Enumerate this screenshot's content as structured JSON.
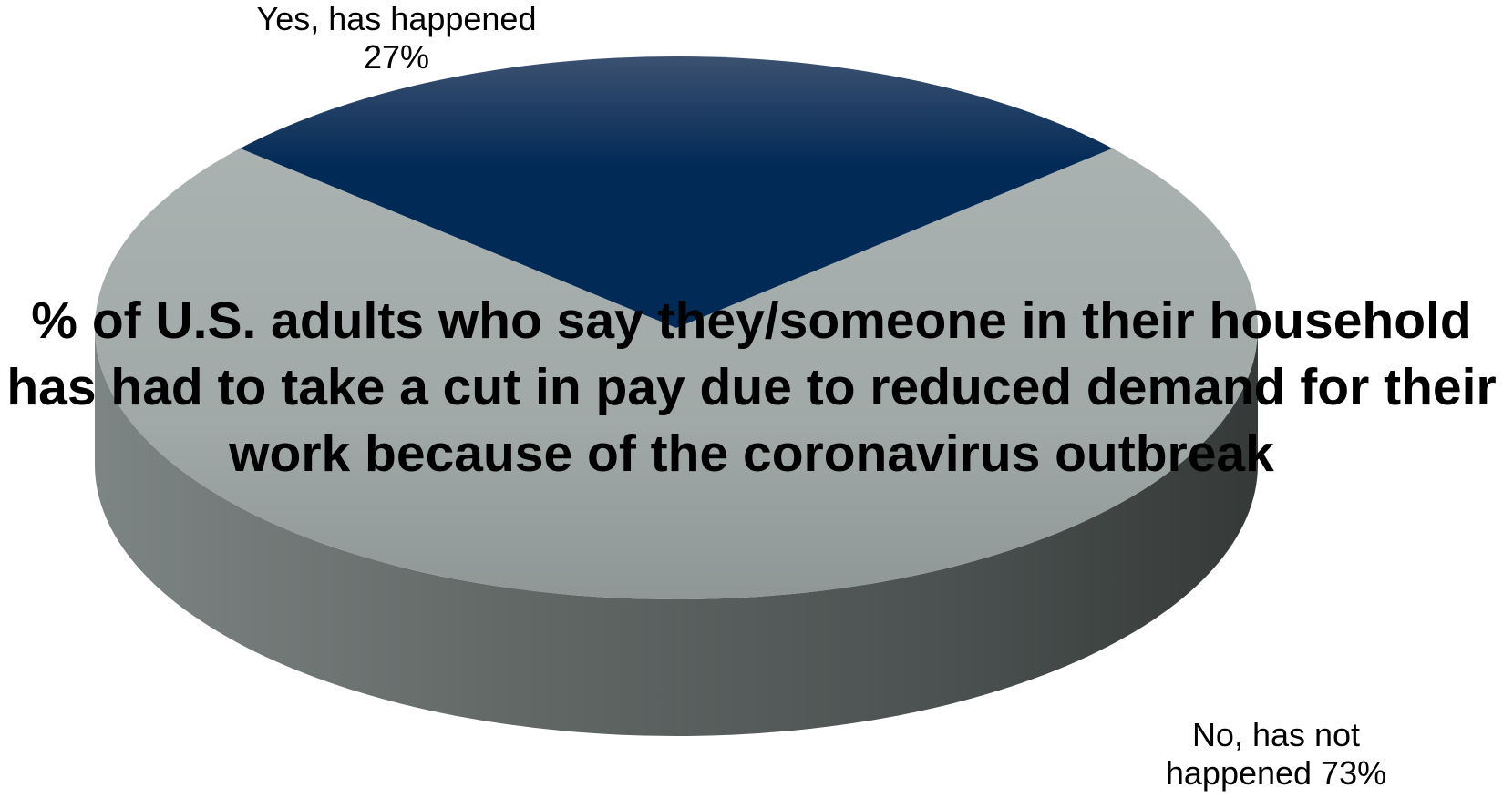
{
  "chart_data": {
    "type": "pie",
    "title": "% of U.S. adults who say they/someone in their household has had to take a cut in pay due to reduced demand for their work because of the coronavirus outbreak",
    "categories": [
      "Yes, has happened",
      "No, has not happened"
    ],
    "values": [
      27,
      73
    ],
    "unit": "%",
    "slices": [
      {
        "label_line1": "Yes, has happened",
        "label_line2": "27%",
        "value": 27,
        "color": "#022a57"
      },
      {
        "label_line1": "No, has not",
        "label_line2": "happened 73%",
        "value": 73,
        "color": "#a2aaa9"
      }
    ],
    "style": "3d-pie",
    "legend": "none"
  }
}
